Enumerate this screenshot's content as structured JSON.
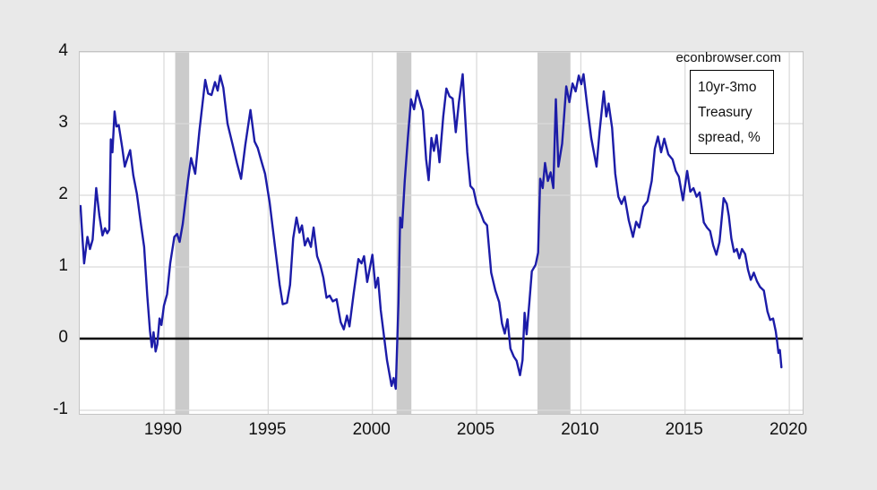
{
  "page": {
    "watermark": "econbrowser.com"
  },
  "legend": {
    "lines": [
      "10yr-3mo",
      "Treasury",
      "spread, %"
    ]
  },
  "chart_data": {
    "type": "line",
    "title": "",
    "series_name": "10yr-3mo Treasury spread, %",
    "xlabel": "",
    "ylabel": "",
    "x_tick_labels": [
      "1990",
      "1995",
      "2000",
      "2005",
      "2010",
      "2015",
      "2020"
    ],
    "x_ticks": [
      1990,
      1995,
      2000,
      2005,
      2010,
      2015,
      2020
    ],
    "y_tick_labels": [
      "4",
      "3",
      "2",
      "1",
      "0",
      "-1"
    ],
    "y_ticks": [
      4,
      3,
      2,
      1,
      0,
      -1
    ],
    "x_range": [
      1985.96,
      2020.64
    ],
    "y_range": [
      -1.05,
      4.0
    ],
    "grid": true,
    "zero_line": true,
    "legend_position": "top-right",
    "recession_bands": [
      [
        1990.54,
        1991.21
      ],
      [
        2001.16,
        2001.87
      ],
      [
        2007.92,
        2009.5
      ]
    ],
    "colors": {
      "line": "#1c1ca8",
      "band": "#cbcbcb",
      "grid": "#d9d9d9",
      "zero_line": "#000000",
      "plot_bg": "#ffffff",
      "outer_bg": "#e9e9e9"
    },
    "points": [
      [
        1986.0,
        1.85
      ],
      [
        1986.08,
        1.45
      ],
      [
        1986.17,
        1.05
      ],
      [
        1986.33,
        1.42
      ],
      [
        1986.45,
        1.25
      ],
      [
        1986.58,
        1.38
      ],
      [
        1986.75,
        2.1
      ],
      [
        1986.9,
        1.72
      ],
      [
        1987.05,
        1.44
      ],
      [
        1987.17,
        1.54
      ],
      [
        1987.28,
        1.47
      ],
      [
        1987.38,
        1.52
      ],
      [
        1987.45,
        2.78
      ],
      [
        1987.53,
        2.6
      ],
      [
        1987.63,
        3.17
      ],
      [
        1987.72,
        2.96
      ],
      [
        1987.83,
        2.98
      ],
      [
        1988.0,
        2.66
      ],
      [
        1988.12,
        2.4
      ],
      [
        1988.25,
        2.52
      ],
      [
        1988.38,
        2.63
      ],
      [
        1988.53,
        2.28
      ],
      [
        1988.7,
        2.02
      ],
      [
        1988.9,
        1.59
      ],
      [
        1989.05,
        1.28
      ],
      [
        1989.2,
        0.6
      ],
      [
        1989.33,
        0.11
      ],
      [
        1989.42,
        -0.12
      ],
      [
        1989.5,
        0.09
      ],
      [
        1989.6,
        -0.18
      ],
      [
        1989.68,
        -0.08
      ],
      [
        1989.79,
        0.28
      ],
      [
        1989.88,
        0.19
      ],
      [
        1990.0,
        0.46
      ],
      [
        1990.15,
        0.62
      ],
      [
        1990.3,
        1.05
      ],
      [
        1990.5,
        1.42
      ],
      [
        1990.63,
        1.46
      ],
      [
        1990.75,
        1.35
      ],
      [
        1990.9,
        1.6
      ],
      [
        1991.0,
        1.84
      ],
      [
        1991.15,
        2.2
      ],
      [
        1991.3,
        2.52
      ],
      [
        1991.5,
        2.3
      ],
      [
        1991.7,
        2.9
      ],
      [
        1991.98,
        3.61
      ],
      [
        1992.12,
        3.42
      ],
      [
        1992.28,
        3.4
      ],
      [
        1992.45,
        3.58
      ],
      [
        1992.58,
        3.46
      ],
      [
        1992.7,
        3.67
      ],
      [
        1992.85,
        3.5
      ],
      [
        1993.05,
        3.0
      ],
      [
        1993.3,
        2.7
      ],
      [
        1993.5,
        2.45
      ],
      [
        1993.7,
        2.23
      ],
      [
        1993.9,
        2.7
      ],
      [
        1994.15,
        3.19
      ],
      [
        1994.35,
        2.75
      ],
      [
        1994.5,
        2.66
      ],
      [
        1994.7,
        2.45
      ],
      [
        1994.85,
        2.3
      ],
      [
        1995.07,
        1.9
      ],
      [
        1995.35,
        1.23
      ],
      [
        1995.55,
        0.75
      ],
      [
        1995.7,
        0.48
      ],
      [
        1995.9,
        0.5
      ],
      [
        1996.05,
        0.75
      ],
      [
        1996.2,
        1.4
      ],
      [
        1996.36,
        1.69
      ],
      [
        1996.5,
        1.48
      ],
      [
        1996.62,
        1.58
      ],
      [
        1996.76,
        1.3
      ],
      [
        1996.9,
        1.4
      ],
      [
        1997.05,
        1.28
      ],
      [
        1997.18,
        1.55
      ],
      [
        1997.35,
        1.15
      ],
      [
        1997.5,
        1.03
      ],
      [
        1997.65,
        0.85
      ],
      [
        1997.8,
        0.57
      ],
      [
        1997.95,
        0.6
      ],
      [
        1998.1,
        0.52
      ],
      [
        1998.28,
        0.55
      ],
      [
        1998.48,
        0.23
      ],
      [
        1998.63,
        0.13
      ],
      [
        1998.78,
        0.32
      ],
      [
        1998.9,
        0.17
      ],
      [
        1999.1,
        0.63
      ],
      [
        1999.33,
        1.11
      ],
      [
        1999.48,
        1.05
      ],
      [
        1999.6,
        1.15
      ],
      [
        1999.75,
        0.79
      ],
      [
        2000.0,
        1.17
      ],
      [
        2000.15,
        0.71
      ],
      [
        2000.27,
        0.85
      ],
      [
        2000.4,
        0.4
      ],
      [
        2000.55,
        0.05
      ],
      [
        2000.7,
        -0.3
      ],
      [
        2000.92,
        -0.66
      ],
      [
        2001.02,
        -0.55
      ],
      [
        2001.12,
        -0.7
      ],
      [
        2001.25,
        0.5
      ],
      [
        2001.33,
        1.69
      ],
      [
        2001.42,
        1.55
      ],
      [
        2001.55,
        2.2
      ],
      [
        2001.7,
        2.8
      ],
      [
        2001.85,
        3.34
      ],
      [
        2002.0,
        3.2
      ],
      [
        2002.15,
        3.46
      ],
      [
        2002.3,
        3.3
      ],
      [
        2002.42,
        3.18
      ],
      [
        2002.58,
        2.5
      ],
      [
        2002.7,
        2.21
      ],
      [
        2002.83,
        2.8
      ],
      [
        2002.95,
        2.62
      ],
      [
        2003.08,
        2.84
      ],
      [
        2003.22,
        2.46
      ],
      [
        2003.4,
        3.1
      ],
      [
        2003.55,
        3.49
      ],
      [
        2003.7,
        3.38
      ],
      [
        2003.85,
        3.35
      ],
      [
        2004.0,
        2.88
      ],
      [
        2004.15,
        3.3
      ],
      [
        2004.33,
        3.69
      ],
      [
        2004.55,
        2.6
      ],
      [
        2004.7,
        2.13
      ],
      [
        2004.85,
        2.08
      ],
      [
        2005.0,
        1.88
      ],
      [
        2005.2,
        1.75
      ],
      [
        2005.35,
        1.63
      ],
      [
        2005.5,
        1.58
      ],
      [
        2005.7,
        0.92
      ],
      [
        2005.9,
        0.67
      ],
      [
        2006.08,
        0.51
      ],
      [
        2006.22,
        0.21
      ],
      [
        2006.35,
        0.07
      ],
      [
        2006.48,
        0.27
      ],
      [
        2006.62,
        -0.14
      ],
      [
        2006.78,
        -0.25
      ],
      [
        2006.92,
        -0.31
      ],
      [
        2007.08,
        -0.51
      ],
      [
        2007.2,
        -0.3
      ],
      [
        2007.3,
        0.36
      ],
      [
        2007.4,
        0.06
      ],
      [
        2007.53,
        0.5
      ],
      [
        2007.65,
        0.94
      ],
      [
        2007.83,
        1.03
      ],
      [
        2007.95,
        1.2
      ],
      [
        2008.05,
        2.23
      ],
      [
        2008.17,
        2.1
      ],
      [
        2008.28,
        2.45
      ],
      [
        2008.42,
        2.2
      ],
      [
        2008.55,
        2.32
      ],
      [
        2008.68,
        2.1
      ],
      [
        2008.8,
        3.34
      ],
      [
        2008.92,
        2.4
      ],
      [
        2009.1,
        2.72
      ],
      [
        2009.3,
        3.52
      ],
      [
        2009.45,
        3.3
      ],
      [
        2009.6,
        3.56
      ],
      [
        2009.75,
        3.45
      ],
      [
        2009.9,
        3.67
      ],
      [
        2010.02,
        3.55
      ],
      [
        2010.13,
        3.69
      ],
      [
        2010.3,
        3.26
      ],
      [
        2010.5,
        2.8
      ],
      [
        2010.75,
        2.4
      ],
      [
        2010.9,
        2.9
      ],
      [
        2011.1,
        3.45
      ],
      [
        2011.22,
        3.1
      ],
      [
        2011.33,
        3.28
      ],
      [
        2011.5,
        2.94
      ],
      [
        2011.65,
        2.3
      ],
      [
        2011.8,
        1.98
      ],
      [
        2011.95,
        1.88
      ],
      [
        2012.1,
        1.98
      ],
      [
        2012.3,
        1.65
      ],
      [
        2012.5,
        1.42
      ],
      [
        2012.65,
        1.63
      ],
      [
        2012.8,
        1.55
      ],
      [
        2013.0,
        1.84
      ],
      [
        2013.2,
        1.92
      ],
      [
        2013.4,
        2.2
      ],
      [
        2013.55,
        2.65
      ],
      [
        2013.7,
        2.82
      ],
      [
        2013.85,
        2.6
      ],
      [
        2014.0,
        2.79
      ],
      [
        2014.2,
        2.57
      ],
      [
        2014.4,
        2.5
      ],
      [
        2014.55,
        2.34
      ],
      [
        2014.7,
        2.26
      ],
      [
        2014.9,
        1.93
      ],
      [
        2015.1,
        2.34
      ],
      [
        2015.25,
        2.05
      ],
      [
        2015.4,
        2.1
      ],
      [
        2015.55,
        1.98
      ],
      [
        2015.7,
        2.04
      ],
      [
        2015.9,
        1.62
      ],
      [
        2016.05,
        1.55
      ],
      [
        2016.2,
        1.5
      ],
      [
        2016.35,
        1.3
      ],
      [
        2016.5,
        1.17
      ],
      [
        2016.65,
        1.35
      ],
      [
        2016.85,
        1.96
      ],
      [
        2017.0,
        1.88
      ],
      [
        2017.1,
        1.71
      ],
      [
        2017.22,
        1.4
      ],
      [
        2017.35,
        1.21
      ],
      [
        2017.48,
        1.25
      ],
      [
        2017.6,
        1.12
      ],
      [
        2017.73,
        1.25
      ],
      [
        2017.88,
        1.18
      ],
      [
        2018.02,
        0.96
      ],
      [
        2018.15,
        0.82
      ],
      [
        2018.3,
        0.92
      ],
      [
        2018.45,
        0.8
      ],
      [
        2018.6,
        0.72
      ],
      [
        2018.78,
        0.67
      ],
      [
        2018.95,
        0.38
      ],
      [
        2019.08,
        0.26
      ],
      [
        2019.22,
        0.28
      ],
      [
        2019.35,
        0.1
      ],
      [
        2019.42,
        -0.05
      ],
      [
        2019.48,
        -0.2
      ],
      [
        2019.55,
        -0.16
      ],
      [
        2019.62,
        -0.4
      ]
    ]
  }
}
